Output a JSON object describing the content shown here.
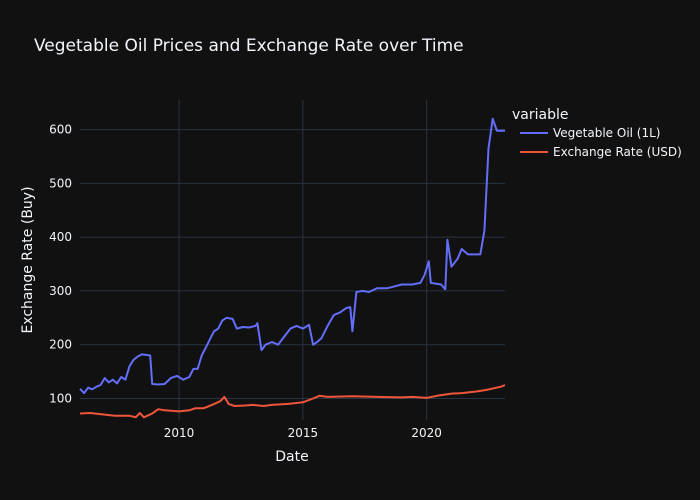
{
  "chart_data": {
    "type": "line",
    "title": "Vegetable Oil Prices and Exchange Rate over Time",
    "xlabel": "Date",
    "ylabel": "Exchange Rate (Buy)",
    "xlim": [
      "2006-01-01",
      "2023-03-01"
    ],
    "ylim": [
      60,
      655
    ],
    "xticks": [
      2010,
      2015,
      2020
    ],
    "yticks": [
      100,
      200,
      300,
      400,
      500,
      600
    ],
    "grid": true,
    "legend": {
      "title": "variable",
      "placement": "top-right (outside plot)"
    },
    "series": [
      {
        "name": "Vegetable Oil (1L)",
        "color": "#636efa",
        "points": [
          [
            "2006-01-01",
            118
          ],
          [
            "2006-03-01",
            110
          ],
          [
            "2006-05-01",
            120
          ],
          [
            "2006-07-01",
            117
          ],
          [
            "2006-09-01",
            122
          ],
          [
            "2006-11-01",
            125
          ],
          [
            "2007-01-01",
            138
          ],
          [
            "2007-03-01",
            130
          ],
          [
            "2007-05-01",
            135
          ],
          [
            "2007-07-01",
            128
          ],
          [
            "2007-09-01",
            140
          ],
          [
            "2007-11-01",
            135
          ],
          [
            "2008-01-01",
            160
          ],
          [
            "2008-03-01",
            172
          ],
          [
            "2008-05-01",
            178
          ],
          [
            "2008-07-01",
            182
          ],
          [
            "2008-09-01",
            181
          ],
          [
            "2008-11-01",
            180
          ],
          [
            "2008-12-01",
            127
          ],
          [
            "2009-03-01",
            126
          ],
          [
            "2009-06-01",
            127
          ],
          [
            "2009-09-01",
            138
          ],
          [
            "2009-12-01",
            142
          ],
          [
            "2010-03-01",
            135
          ],
          [
            "2010-06-01",
            140
          ],
          [
            "2010-08-01",
            155
          ],
          [
            "2010-10-01",
            155
          ],
          [
            "2010-12-01",
            180
          ],
          [
            "2011-02-01",
            195
          ],
          [
            "2011-04-01",
            210
          ],
          [
            "2011-06-01",
            225
          ],
          [
            "2011-08-01",
            230
          ],
          [
            "2011-10-01",
            245
          ],
          [
            "2011-12-01",
            250
          ],
          [
            "2012-03-01",
            248
          ],
          [
            "2012-05-01",
            230
          ],
          [
            "2012-08-01",
            233
          ],
          [
            "2012-11-01",
            232
          ],
          [
            "2013-02-01",
            235
          ],
          [
            "2013-03-01",
            240
          ],
          [
            "2013-05-01",
            190
          ],
          [
            "2013-07-01",
            200
          ],
          [
            "2013-10-01",
            205
          ],
          [
            "2014-01-01",
            200
          ],
          [
            "2014-04-01",
            215
          ],
          [
            "2014-07-01",
            230
          ],
          [
            "2014-10-01",
            235
          ],
          [
            "2015-01-01",
            230
          ],
          [
            "2015-04-01",
            237
          ],
          [
            "2015-06-01",
            200
          ],
          [
            "2015-08-01",
            205
          ],
          [
            "2015-10-01",
            212
          ],
          [
            "2016-01-01",
            235
          ],
          [
            "2016-04-01",
            255
          ],
          [
            "2016-07-01",
            260
          ],
          [
            "2016-10-01",
            268
          ],
          [
            "2016-12-01",
            270
          ],
          [
            "2017-01-01",
            225
          ],
          [
            "2017-03-01",
            298
          ],
          [
            "2017-06-01",
            300
          ],
          [
            "2017-09-01",
            298
          ],
          [
            "2018-01-01",
            305
          ],
          [
            "2018-06-01",
            305
          ],
          [
            "2019-01-01",
            312
          ],
          [
            "2019-06-01",
            312
          ],
          [
            "2019-10-01",
            315
          ],
          [
            "2019-12-01",
            330
          ],
          [
            "2020-02-01",
            355
          ],
          [
            "2020-03-01",
            315
          ],
          [
            "2020-08-01",
            312
          ],
          [
            "2020-10-01",
            303
          ],
          [
            "2020-11-01",
            395
          ],
          [
            "2021-01-01",
            345
          ],
          [
            "2021-04-01",
            360
          ],
          [
            "2021-06-01",
            378
          ],
          [
            "2021-09-01",
            368
          ],
          [
            "2022-03-01",
            368
          ],
          [
            "2022-05-01",
            412
          ],
          [
            "2022-07-01",
            565
          ],
          [
            "2022-09-01",
            620
          ],
          [
            "2022-11-01",
            598
          ],
          [
            "2023-03-01",
            598
          ]
        ]
      },
      {
        "name": "Exchange Rate (USD)",
        "color": "#ef553b",
        "points": [
          [
            "2006-01-01",
            72
          ],
          [
            "2006-06-01",
            73
          ],
          [
            "2007-01-01",
            70
          ],
          [
            "2007-06-01",
            68
          ],
          [
            "2008-01-01",
            68
          ],
          [
            "2008-04-01",
            65
          ],
          [
            "2008-06-01",
            73
          ],
          [
            "2008-08-01",
            65
          ],
          [
            "2008-12-01",
            72
          ],
          [
            "2009-03-01",
            80
          ],
          [
            "2009-06-01",
            78
          ],
          [
            "2010-01-01",
            76
          ],
          [
            "2010-06-01",
            78
          ],
          [
            "2010-09-01",
            82
          ],
          [
            "2011-01-01",
            82
          ],
          [
            "2011-05-01",
            88
          ],
          [
            "2011-09-01",
            95
          ],
          [
            "2011-11-01",
            103
          ],
          [
            "2012-01-01",
            90
          ],
          [
            "2012-04-01",
            86
          ],
          [
            "2012-09-01",
            87
          ],
          [
            "2013-01-01",
            88
          ],
          [
            "2013-06-01",
            86
          ],
          [
            "2013-10-01",
            88
          ],
          [
            "2014-06-01",
            90
          ],
          [
            "2015-01-01",
            93
          ],
          [
            "2015-06-01",
            100
          ],
          [
            "2015-09-01",
            105
          ],
          [
            "2016-01-01",
            103
          ],
          [
            "2017-01-01",
            104
          ],
          [
            "2018-01-01",
            103
          ],
          [
            "2019-01-01",
            102
          ],
          [
            "2019-06-01",
            103
          ],
          [
            "2020-01-01",
            101
          ],
          [
            "2020-06-01",
            105
          ],
          [
            "2021-01-01",
            109
          ],
          [
            "2021-06-01",
            110
          ],
          [
            "2022-01-01",
            113
          ],
          [
            "2022-06-01",
            116
          ],
          [
            "2023-01-01",
            122
          ],
          [
            "2023-03-01",
            125
          ]
        ]
      }
    ]
  }
}
